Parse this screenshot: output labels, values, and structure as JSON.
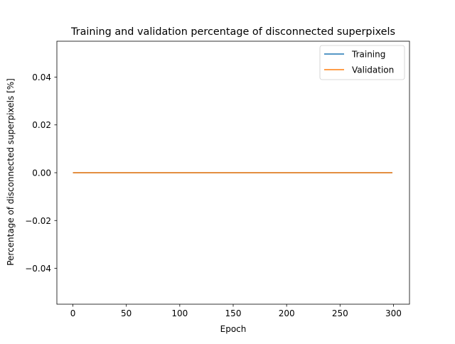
{
  "chart_data": {
    "type": "line",
    "title": "Training and validation percentage of disconnected superpixels",
    "xlabel": "Epoch",
    "ylabel": "Percentage of disconnected superpixels [%]",
    "xlim": [
      -15,
      315
    ],
    "ylim": [
      -0.055,
      0.055
    ],
    "xticks": [
      0,
      50,
      100,
      150,
      200,
      250,
      300
    ],
    "xtick_labels": [
      "0",
      "50",
      "100",
      "150",
      "200",
      "250",
      "300"
    ],
    "yticks": [
      -0.04,
      -0.02,
      0.0,
      0.02,
      0.04
    ],
    "ytick_labels": [
      "−0.04",
      "−0.02",
      "0.00",
      "0.02",
      "0.04"
    ],
    "grid": false,
    "legend_position": "top-right",
    "series": [
      {
        "name": "Training",
        "color": "#1f77b4",
        "x": [
          0,
          299
        ],
        "y": [
          0.0,
          0.0
        ]
      },
      {
        "name": "Validation",
        "color": "#ff7f0e",
        "x": [
          0,
          299
        ],
        "y": [
          0.0,
          0.0
        ]
      }
    ]
  }
}
